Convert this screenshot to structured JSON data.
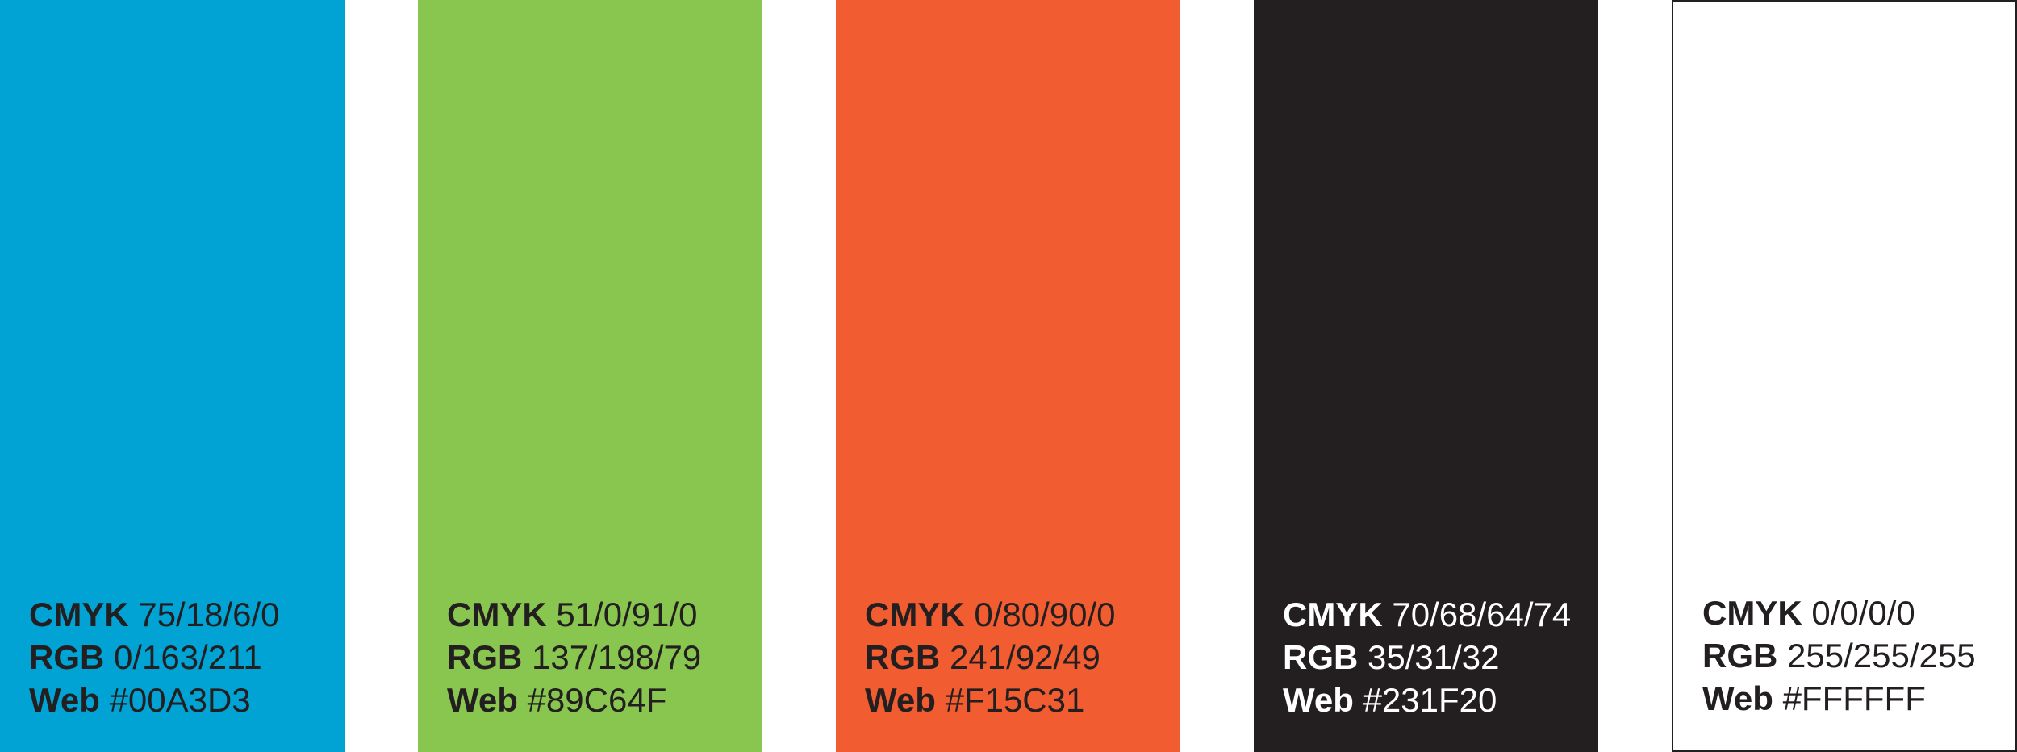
{
  "swatches": [
    {
      "fill": "#00A3D3",
      "text_color": "#231F20",
      "cmyk_label": "CMYK",
      "cmyk": "75/18/6/0",
      "rgb_label": "RGB",
      "rgb": "0/163/211",
      "web_label": "Web",
      "web": "#00A3D3"
    },
    {
      "fill": "#89C64F",
      "text_color": "#231F20",
      "cmyk_label": "CMYK",
      "cmyk": "51/0/91/0",
      "rgb_label": "RGB",
      "rgb": "137/198/79",
      "web_label": "Web",
      "web": "#89C64F"
    },
    {
      "fill": "#F15C31",
      "text_color": "#231F20",
      "cmyk_label": "CMYK",
      "cmyk": "0/80/90/0",
      "rgb_label": "RGB",
      "rgb": "241/92/49",
      "web_label": "Web",
      "web": "#F15C31"
    },
    {
      "fill": "#231F20",
      "text_color": "#FFFFFF",
      "cmyk_label": "CMYK",
      "cmyk": "70/68/64/74",
      "rgb_label": "RGB",
      "rgb": "35/31/32",
      "web_label": "Web",
      "web": "#231F20"
    },
    {
      "fill": "#FFFFFF",
      "text_color": "#231F20",
      "cmyk_label": "CMYK",
      "cmyk": "0/0/0/0",
      "rgb_label": "RGB",
      "rgb": "255/255/255",
      "web_label": "Web",
      "web": "#FFFFFF"
    }
  ]
}
